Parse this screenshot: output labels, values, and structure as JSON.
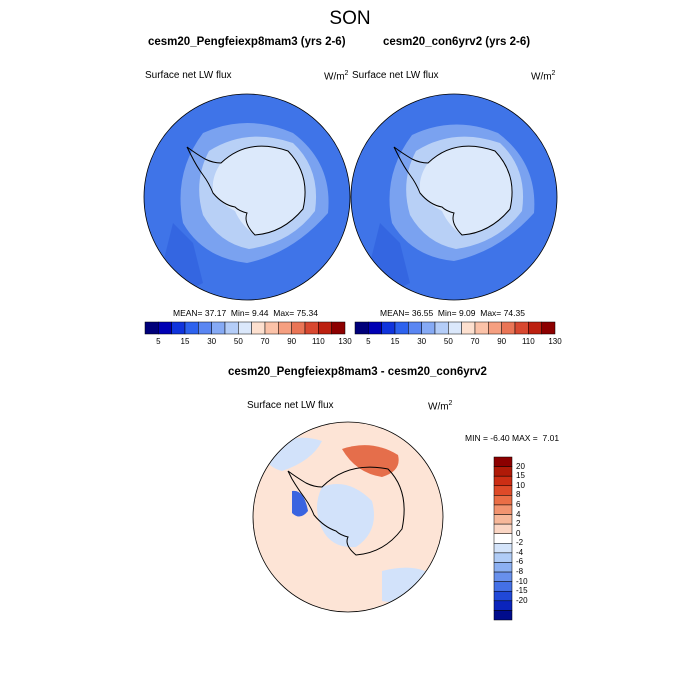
{
  "figure": {
    "title": "SON"
  },
  "panels": [
    {
      "id": "left",
      "title": "cesm20_Pengfeiexp8mam3 (yrs 2-6)",
      "variable": "Surface net LW flux",
      "units_base": "W/m",
      "units_exp": "2",
      "stats": {
        "mean_label": "MEAN=",
        "mean": "37.17",
        "min_label": "Min=",
        "min": "9.44",
        "max_label": "Max=",
        "max": "75.34"
      }
    },
    {
      "id": "right",
      "title": "cesm20_con6yrv2 (yrs 2-6)",
      "variable": "Surface net LW flux",
      "units_base": "W/m",
      "units_exp": "2",
      "stats": {
        "mean_label": "MEAN=",
        "mean": "36.55",
        "min_label": "Min=",
        "min": "9.09",
        "max_label": "Max=",
        "max": "74.35"
      }
    }
  ],
  "diff_panel": {
    "title": "cesm20_Pengfeiexp8mam3 - cesm20_con6yrv2",
    "variable": "Surface net LW flux",
    "units_base": "W/m",
    "units_exp": "2",
    "stats": {
      "min_label": "MIN =",
      "min": "-6.40",
      "max_label": "MAX =",
      "max": "7.01"
    }
  },
  "colorbar_main": {
    "colors": [
      "#00007a",
      "#0000b4",
      "#1034dc",
      "#2d62ee",
      "#5a86f2",
      "#86aaf5",
      "#b4cdf8",
      "#dbe8fb",
      "#fde0cf",
      "#fbc2a8",
      "#f59f80",
      "#ea7556",
      "#d84830",
      "#bc2010",
      "#8c0000"
    ],
    "tick_labels": [
      "5",
      "15",
      "30",
      "50",
      "70",
      "90",
      "110",
      "130"
    ]
  },
  "colorbar_diff": {
    "colors": [
      "#8c0000",
      "#b01a08",
      "#cc2e14",
      "#de4a28",
      "#ea6e46",
      "#f29470",
      "#f7b89a",
      "#fbd6c4",
      "#ffffff",
      "#d4e4fa",
      "#b0ccf6",
      "#8cb0f2",
      "#6890ec",
      "#4470e6",
      "#2048d8",
      "#0a24bc",
      "#000c8c"
    ],
    "tick_labels": [
      "20",
      "15",
      "10",
      "8",
      "6",
      "4",
      "2",
      "0",
      "-2",
      "-4",
      "-6",
      "-8",
      "-10",
      "-15",
      "-20"
    ]
  },
  "map": {
    "ocean_color": "#3f74e8",
    "ocean_light_color": "#7aa2f0",
    "ice_color": "#dce9fb",
    "ice_edge_color": "#b8d0f6",
    "diff_base_color": "#fde4d6",
    "diff_cool_color": "#d2e2fa"
  }
}
